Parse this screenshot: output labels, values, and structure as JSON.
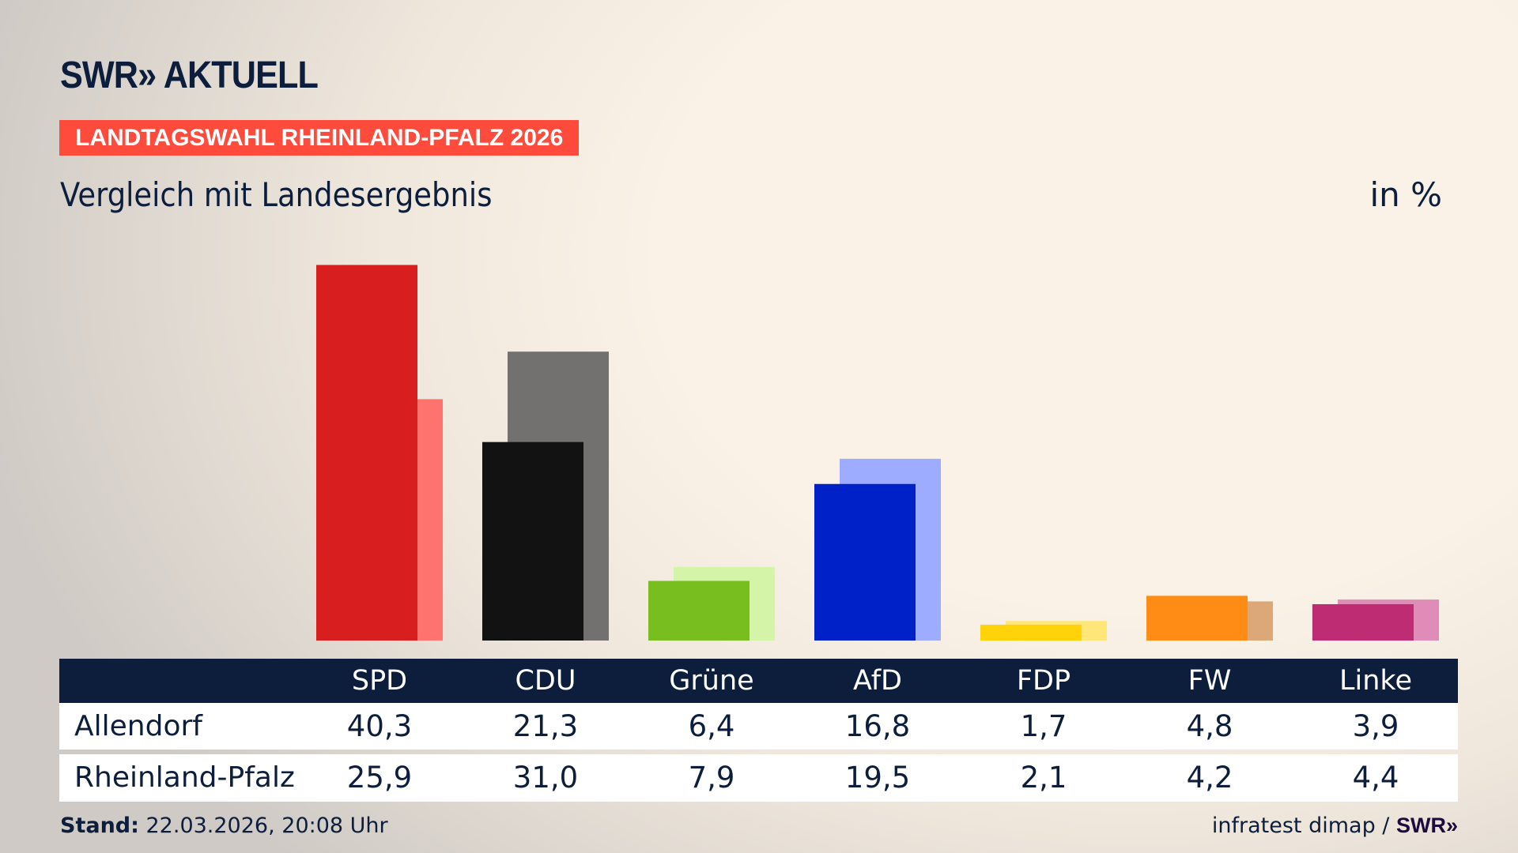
{
  "header": {
    "logo": "SWR» AKTUELL",
    "badge": "LANDTAGSWAHL RHEINLAND-PFALZ 2026",
    "subtitle": "Vergleich mit Landesergebnis",
    "unit": "in %"
  },
  "colors": {
    "navy": "#0c1e3c",
    "badge": "#ff4b3c"
  },
  "chart_data": {
    "type": "bar",
    "title": "Vergleich mit Landesergebnis",
    "ylabel": "in %",
    "categories": [
      "SPD",
      "CDU",
      "Grüne",
      "AfD",
      "FDP",
      "FW",
      "Linke"
    ],
    "series": [
      {
        "name": "Allendorf",
        "values": [
          40.3,
          21.3,
          6.4,
          16.8,
          1.7,
          4.8,
          3.9
        ],
        "colors": [
          "#d81e1e",
          "#121212",
          "#78be1e",
          "#0020c8",
          "#ffd20a",
          "#ff8c14",
          "#be2d73"
        ]
      },
      {
        "name": "Rheinland-Pfalz",
        "values": [
          25.9,
          31.0,
          7.9,
          19.5,
          2.1,
          4.2,
          4.4
        ],
        "colors": [
          "#ff736e",
          "#727170",
          "#d4f5a8",
          "#9eacff",
          "#ffe678",
          "#dca878",
          "#e08cb8"
        ]
      }
    ],
    "display_values": [
      [
        "40,3",
        "21,3",
        "6,4",
        "16,8",
        "1,7",
        "4,8",
        "3,9"
      ],
      [
        "25,9",
        "31,0",
        "7,9",
        "19,5",
        "2,1",
        "4,2",
        "4,4"
      ]
    ],
    "ylim": [
      0,
      40.3
    ],
    "grid": false
  },
  "footer": {
    "stand_label": "Stand:",
    "stand_value": " 22.03.2026, 20:08 Uhr",
    "source": "infratest dimap / ",
    "source_logo": "SWR»"
  }
}
